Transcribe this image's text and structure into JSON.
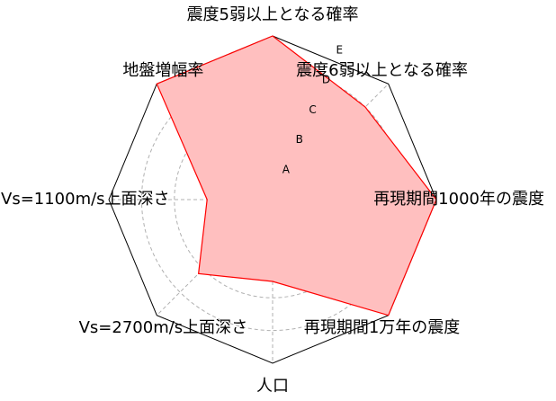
{
  "chart_data": {
    "type": "radar",
    "axes": [
      "震度5弱以上となる確率",
      "震度6弱以上となる確率",
      "再現期間1000年の震度",
      "再現期間1万年の震度",
      "人口",
      "Vs=2700m/s上面深さ",
      "Vs=1100m/s上面深さ",
      "地盤増幅率"
    ],
    "rank_labels": [
      "A",
      "B",
      "C",
      "D",
      "E"
    ],
    "rmax": 5,
    "values": [
      5.0,
      4.0,
      5.0,
      5.0,
      2.5,
      3.2,
      2.0,
      5.0
    ],
    "grid": true,
    "colors": {
      "fill": "#ffbfbf",
      "line": "#ff0000",
      "grid": "#b0b0b0",
      "frame": "#000000"
    }
  }
}
